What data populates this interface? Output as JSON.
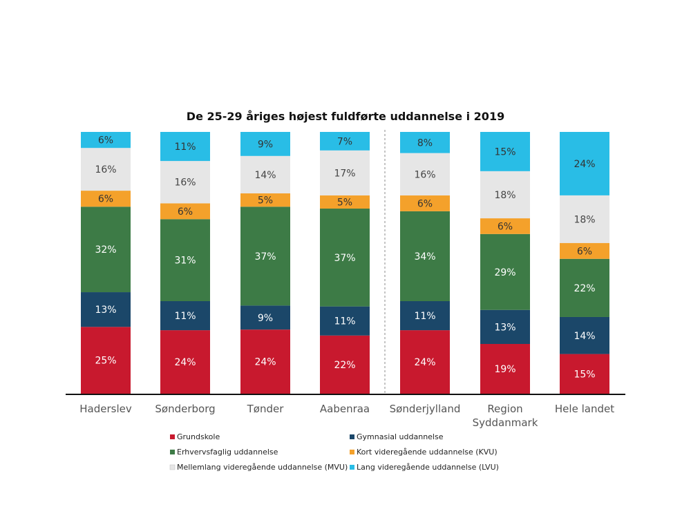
{
  "chart_data": {
    "type": "bar",
    "stacked": true,
    "title": "De 25-29 åriges højest fuldførte uddannelse i 2019",
    "categories": [
      "Haderslev",
      "Sønderborg",
      "Tønder",
      "Aabenraa",
      "Sønderjylland",
      "Region Syddanmark",
      "Hele landet"
    ],
    "category_lines": [
      [
        "Haderslev"
      ],
      [
        "Sønderborg"
      ],
      [
        "Tønder"
      ],
      [
        "Aabenraa"
      ],
      [
        "Sønderjylland"
      ],
      [
        "Region",
        "Syddanmark"
      ],
      [
        "Hele landet"
      ]
    ],
    "divider_after_category": "Aabenraa",
    "series": [
      {
        "name": "Grundskole",
        "color": "#c8192e",
        "label_color": "#ffffff",
        "values": [
          25,
          24,
          24,
          22,
          24,
          19,
          15
        ]
      },
      {
        "name": "Gymnasial uddannelse",
        "color": "#1b4769",
        "label_color": "#ffffff",
        "values": [
          13,
          11,
          9,
          11,
          11,
          13,
          14
        ]
      },
      {
        "name": "Erhvervsfaglig uddannelse",
        "color": "#3d7b46",
        "label_color": "#ffffff",
        "values": [
          32,
          31,
          37,
          37,
          34,
          29,
          22
        ]
      },
      {
        "name": "Kort videregående uddannelse (KVU)",
        "color": "#f4a12b",
        "label_color": "#333333",
        "values": [
          6,
          6,
          5,
          5,
          6,
          6,
          6
        ]
      },
      {
        "name": "Mellemlang videregående uddannelse (MVU)",
        "color": "#e6e6e6",
        "label_color": "#444444",
        "values": [
          16,
          16,
          14,
          17,
          16,
          18,
          18
        ]
      },
      {
        "name": "Lang videregående uddannelse (LVU)",
        "color": "#29bde6",
        "label_color": "#333333",
        "values": [
          6,
          11,
          9,
          7,
          8,
          15,
          24
        ]
      }
    ],
    "value_labels": [
      [
        "25%",
        "24%",
        "24%",
        "22%",
        "24%",
        "19%",
        "15%"
      ],
      [
        "13%",
        "11%",
        "9%",
        "11%",
        "11%",
        "13%",
        "14%"
      ],
      [
        "32%",
        "31%",
        "37%",
        "37%",
        "34%",
        "29%",
        "22%"
      ],
      [
        "6%",
        "6%",
        "5%",
        "5%",
        "6%",
        "6%",
        "6%"
      ],
      [
        "16%",
        "16%",
        "14%",
        "17%",
        "16%",
        "18%",
        "18%"
      ],
      [
        "6%",
        "11%",
        "9%",
        "7%",
        "8%",
        "15%",
        "24%"
      ]
    ],
    "legend": {
      "position": "bottom",
      "entries": [
        "Grundskole",
        "Gymnasial uddannelse",
        "Erhvervsfaglig uddannelse",
        "Kort videregående uddannelse (KVU)",
        "Mellemlang videregående uddannelse (MVU)",
        "Lang videregående uddannelse (LVU)"
      ]
    },
    "xlabel": "",
    "ylabel": "",
    "grid": false
  }
}
